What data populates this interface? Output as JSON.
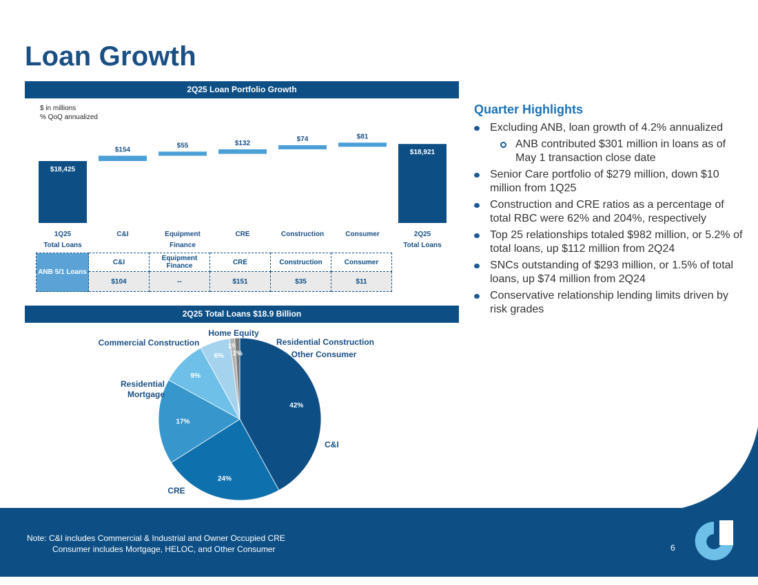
{
  "title": "Loan Growth",
  "banner1": "2Q25 Loan Portfolio Growth",
  "banner2": "2Q25 Total Loans $18.9 Billion",
  "units_line1": "$ in millions",
  "units_line2": "% QoQ annualized",
  "chart_data": [
    {
      "type": "bar",
      "subtype": "waterfall",
      "title": "2Q25 Loan Portfolio Growth",
      "units": "$ in millions",
      "categories": [
        [
          "1Q25",
          "Total Loans"
        ],
        [
          "C&I"
        ],
        [
          "Equipment",
          "Finance"
        ],
        [
          "CRE"
        ],
        [
          "Construction"
        ],
        [
          "Consumer"
        ],
        [
          "2Q25",
          "Total Loans"
        ]
      ],
      "values": [
        18425,
        154,
        55,
        132,
        74,
        81,
        18921
      ],
      "labels": [
        "$18,425",
        "$154",
        "$55",
        "$132",
        "$74",
        "$81",
        "$18,921"
      ],
      "kinds": [
        "total",
        "delta",
        "delta",
        "delta",
        "delta",
        "delta",
        "total"
      ],
      "colors": {
        "total": "#0d4f85",
        "delta": "#4a9fd6"
      }
    },
    {
      "type": "pie",
      "title": "2Q25 Total Loans $18.9 Billion",
      "slices": [
        {
          "name": "C&I",
          "value": 42,
          "label": "42%",
          "color": "#0d4f85"
        },
        {
          "name": "CRE",
          "value": 24,
          "label": "24%",
          "color": "#0e70ad"
        },
        {
          "name": "Residential Mortgage",
          "label_lines": [
            "Residential",
            "Mortgage"
          ],
          "value": 17,
          "label": "17%",
          "color": "#3796cc"
        },
        {
          "name": "Commercial Construction",
          "value": 9,
          "label": "9%",
          "color": "#6ec0e8"
        },
        {
          "name": "Home Equity",
          "value": 6,
          "label": "6%",
          "color": "#a5d3ee"
        },
        {
          "name": "Residential Construction",
          "value": 1,
          "label": "1%",
          "color": "#b2b2b2"
        },
        {
          "name": "Other Consumer",
          "value": 1,
          "label": "1%",
          "color": "#7b7b7b"
        }
      ]
    }
  ],
  "anb_table": {
    "row_label": "ANB 5/1 Loans",
    "headers": [
      "C&I",
      "Equipment Finance",
      "CRE",
      "Construction",
      "Consumer"
    ],
    "values": [
      "$104",
      "--",
      "$151",
      "$35",
      "$11"
    ]
  },
  "highlights": {
    "title": "Quarter Highlights",
    "items": [
      "Excluding ANB, loan growth of 4.2% annualized",
      "ANB contributed $301 million in loans as of May 1 transaction close date",
      "Senior Care portfolio of $279 million, down $10 million from 1Q25",
      "Construction and CRE ratios as a percentage of total RBC were 62% and 204%, respectively",
      "Top 25 relationships totaled $982 million, or 5.2% of total loans, up $112 million from 2Q24",
      "SNCs outstanding of $293 million, or 1.5% of total loans, up $74 million from 2Q24",
      "Conservative relationship lending limits driven by risk grades"
    ]
  },
  "footer": {
    "note_line1": "Note: C&I includes Commercial & Industrial and Owner Occupied CRE",
    "note_line2": "Consumer includes Mortgage, HELOC, and Other Consumer",
    "page_number": "6"
  },
  "colors": {
    "brand_navy": "#0d4f85",
    "accent_blue": "#1a72b8",
    "light_blue": "#4a9fd6"
  }
}
